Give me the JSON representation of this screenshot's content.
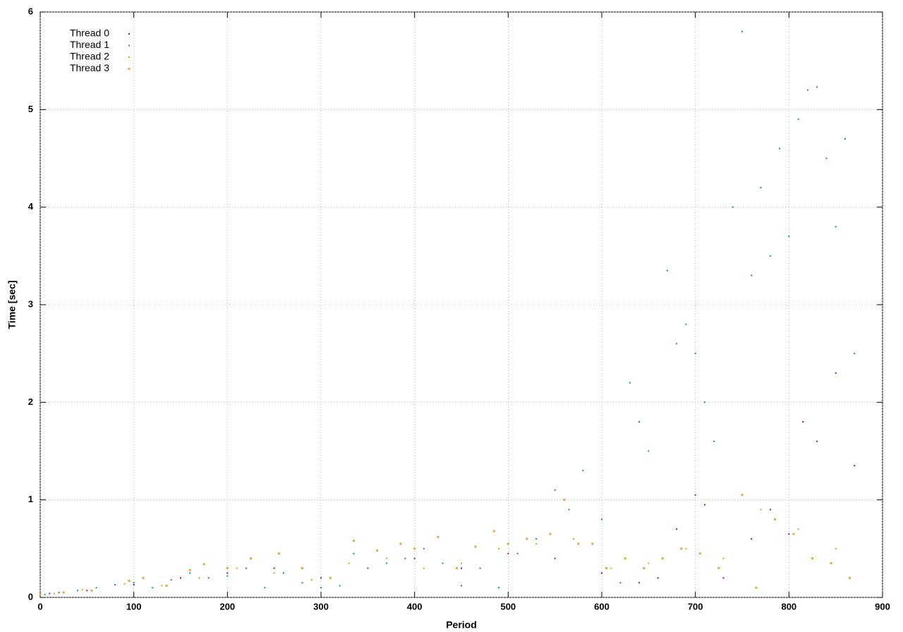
{
  "chart_data": {
    "type": "scatter",
    "x_label": "Period",
    "y_label": "Time [sec]",
    "xlim": [
      0,
      900
    ],
    "ylim": [
      0,
      6
    ],
    "xticks": [
      0,
      100,
      200,
      300,
      400,
      500,
      600,
      700,
      800,
      900
    ],
    "yticks": [
      0,
      1,
      2,
      3,
      4,
      5,
      6
    ],
    "grid": true,
    "legend": "top-left",
    "series": [
      {
        "name": "Thread 0",
        "color": "#9400d3",
        "size": 2,
        "x": [
          10,
          50,
          100,
          150,
          200,
          250,
          300,
          350,
          400,
          450,
          500,
          550,
          600,
          640,
          660,
          680,
          700,
          710,
          730,
          760,
          780,
          800,
          815,
          830,
          850,
          870
        ],
        "values": [
          0.04,
          0.07,
          0.13,
          0.2,
          0.25,
          0.3,
          0.2,
          0.3,
          0.4,
          0.3,
          0.45,
          0.4,
          0.25,
          0.15,
          0.2,
          0.7,
          1.05,
          0.95,
          0.2,
          0.6,
          0.9,
          0.65,
          1.8,
          1.6,
          2.3,
          1.35
        ]
      },
      {
        "name": "Thread 1",
        "color": "#009e73",
        "size": 2,
        "x": [
          5,
          20,
          40,
          60,
          80,
          100,
          120,
          140,
          160,
          180,
          200,
          220,
          240,
          260,
          280,
          300,
          320,
          335,
          350,
          370,
          390,
          410,
          430,
          450,
          470,
          490,
          510,
          530,
          550,
          565,
          580,
          600,
          620,
          630,
          640,
          650,
          670,
          680,
          690,
          700,
          710,
          720,
          740,
          750,
          760,
          770,
          780,
          790,
          800,
          810,
          820,
          830,
          840,
          850,
          860,
          870
        ],
        "values": [
          0.03,
          0.05,
          0.07,
          0.1,
          0.13,
          0.15,
          0.1,
          0.18,
          0.25,
          0.2,
          0.22,
          0.3,
          0.1,
          0.25,
          0.15,
          0.1,
          0.12,
          0.45,
          0.3,
          0.35,
          0.4,
          0.5,
          0.35,
          0.12,
          0.3,
          0.1,
          0.45,
          0.6,
          1.1,
          0.9,
          1.3,
          0.8,
          0.15,
          2.2,
          1.8,
          1.5,
          3.35,
          2.6,
          2.8,
          2.5,
          2.0,
          1.6,
          4.0,
          5.8,
          3.3,
          4.2,
          3.5,
          4.6,
          3.7,
          4.9,
          5.2,
          5.23,
          4.5,
          3.8,
          4.7,
          2.5
        ]
      },
      {
        "name": "Thread 2",
        "color": "#e69f00",
        "size": 2,
        "x": [
          15,
          45,
          90,
          130,
          170,
          210,
          250,
          290,
          330,
          370,
          410,
          450,
          490,
          530,
          570,
          610,
          650,
          690,
          730,
          770,
          810,
          850
        ],
        "values": [
          0.04,
          0.08,
          0.14,
          0.12,
          0.2,
          0.3,
          0.25,
          0.18,
          0.35,
          0.4,
          0.3,
          0.35,
          0.5,
          0.55,
          0.6,
          0.3,
          0.35,
          0.5,
          0.4,
          0.9,
          0.7,
          0.5
        ]
      },
      {
        "name": "Thread 3",
        "color": "#e8a838",
        "size": 3,
        "x": [
          0,
          25,
          55,
          95,
          110,
          135,
          160,
          175,
          200,
          225,
          255,
          280,
          310,
          335,
          360,
          385,
          400,
          425,
          445,
          465,
          485,
          500,
          520,
          545,
          560,
          575,
          590,
          605,
          625,
          645,
          665,
          685,
          705,
          725,
          750,
          765,
          785,
          805,
          825,
          845,
          865
        ],
        "values": [
          0.03,
          0.05,
          0.07,
          0.17,
          0.2,
          0.12,
          0.28,
          0.34,
          0.3,
          0.4,
          0.45,
          0.3,
          0.2,
          0.58,
          0.48,
          0.55,
          0.5,
          0.62,
          0.3,
          0.52,
          0.68,
          0.55,
          0.6,
          0.65,
          1.0,
          0.55,
          0.55,
          0.3,
          0.4,
          0.3,
          0.4,
          0.5,
          0.45,
          0.3,
          1.05,
          0.1,
          0.8,
          0.65,
          0.4,
          0.35,
          0.2
        ]
      }
    ]
  }
}
